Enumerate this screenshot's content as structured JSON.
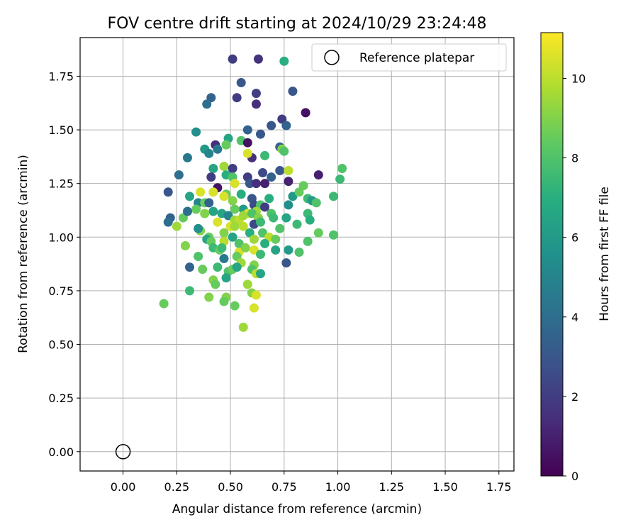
{
  "chart_data": {
    "type": "scatter",
    "title": "FOV centre drift starting at 2024/10/29 23:24:48",
    "xlabel": "Angular distance from reference (arcmin)",
    "ylabel": "Rotation from reference (arcmin)",
    "xlim": [
      -0.2,
      1.82
    ],
    "ylim": [
      -0.09,
      1.93
    ],
    "x_ticks": [
      0.0,
      0.25,
      0.5,
      0.75,
      1.0,
      1.25,
      1.5,
      1.75
    ],
    "x_tick_labels": [
      "0.00",
      "0.25",
      "0.50",
      "0.75",
      "1.00",
      "1.25",
      "1.50",
      "1.75"
    ],
    "y_ticks": [
      0.0,
      0.25,
      0.5,
      0.75,
      1.0,
      1.25,
      1.5,
      1.75
    ],
    "y_tick_labels": [
      "0.00",
      "0.25",
      "0.50",
      "0.75",
      "1.00",
      "1.25",
      "1.50",
      "1.75"
    ],
    "grid": true,
    "legend": {
      "placement": "upper-right",
      "entries": [
        "Reference platepar"
      ]
    },
    "reference_point": {
      "x": 0.0,
      "y": 0.0
    },
    "colorbar": {
      "label": "Hours from first FF file",
      "colormap": "viridis",
      "range": [
        0,
        11.15
      ],
      "ticks": [
        0,
        2,
        4,
        6,
        8,
        10
      ],
      "tick_labels": [
        "0",
        "2",
        "4",
        "6",
        "8",
        "10"
      ]
    },
    "points": [
      [
        0.51,
        1.83,
        2.0
      ],
      [
        0.63,
        1.83,
        1.6
      ],
      [
        0.75,
        1.82,
        7.0
      ],
      [
        0.55,
        1.72,
        3.0
      ],
      [
        0.41,
        1.65,
        3.5
      ],
      [
        0.53,
        1.65,
        2.0
      ],
      [
        0.79,
        1.68,
        3.0
      ],
      [
        0.62,
        1.67,
        2.0
      ],
      [
        0.39,
        1.62,
        4.0
      ],
      [
        0.62,
        1.62,
        1.5
      ],
      [
        0.85,
        1.58,
        0.5
      ],
      [
        0.74,
        1.55,
        2.0
      ],
      [
        0.76,
        1.52,
        3.5
      ],
      [
        0.69,
        1.52,
        3.0
      ],
      [
        0.34,
        1.49,
        5.5
      ],
      [
        0.58,
        1.5,
        3.5
      ],
      [
        0.64,
        1.48,
        3.0
      ],
      [
        0.49,
        1.46,
        6.5
      ],
      [
        0.48,
        1.43,
        8.5
      ],
      [
        0.55,
        1.45,
        8.0
      ],
      [
        0.58,
        1.44,
        0.5
      ],
      [
        0.43,
        1.43,
        1.5
      ],
      [
        0.38,
        1.41,
        6.0
      ],
      [
        0.4,
        1.39,
        5.0
      ],
      [
        0.44,
        1.41,
        4.5
      ],
      [
        0.73,
        1.42,
        3.5
      ],
      [
        0.74,
        1.41,
        9.0
      ],
      [
        0.75,
        1.4,
        8.0
      ],
      [
        0.3,
        1.37,
        4.5
      ],
      [
        0.6,
        1.37,
        1.5
      ],
      [
        0.66,
        1.38,
        7.5
      ],
      [
        0.58,
        1.39,
        10.5
      ],
      [
        0.47,
        1.33,
        9.5
      ],
      [
        0.42,
        1.32,
        6.5
      ],
      [
        0.51,
        1.32,
        2.0
      ],
      [
        0.73,
        1.31,
        3.0
      ],
      [
        0.77,
        1.31,
        10.0
      ],
      [
        1.02,
        1.32,
        8.0
      ],
      [
        0.26,
        1.29,
        4.0
      ],
      [
        0.41,
        1.28,
        2.0
      ],
      [
        0.48,
        1.29,
        7.0
      ],
      [
        0.51,
        1.28,
        8.0
      ],
      [
        0.58,
        1.28,
        2.0
      ],
      [
        0.65,
        1.3,
        2.5
      ],
      [
        0.69,
        1.28,
        3.5
      ],
      [
        0.77,
        1.26,
        1.0
      ],
      [
        0.91,
        1.29,
        1.0
      ],
      [
        1.01,
        1.27,
        7.5
      ],
      [
        0.21,
        1.21,
        3.0
      ],
      [
        0.44,
        1.23,
        0.5
      ],
      [
        0.52,
        1.25,
        10.5
      ],
      [
        0.59,
        1.25,
        3.0
      ],
      [
        0.62,
        1.25,
        1.5
      ],
      [
        0.66,
        1.25,
        1.0
      ],
      [
        0.84,
        1.24,
        8.5
      ],
      [
        0.36,
        1.21,
        10.5
      ],
      [
        0.48,
        1.2,
        8.5
      ],
      [
        0.55,
        1.2,
        7.0
      ],
      [
        0.79,
        1.19,
        6.0
      ],
      [
        0.82,
        1.21,
        8.5
      ],
      [
        0.98,
        1.19,
        7.5
      ],
      [
        0.31,
        1.19,
        6.5
      ],
      [
        0.42,
        1.21,
        10.5
      ],
      [
        0.47,
        1.19,
        10.5
      ],
      [
        0.6,
        1.18,
        3.0
      ],
      [
        0.68,
        1.18,
        7.0
      ],
      [
        0.86,
        1.18,
        7.5
      ],
      [
        0.35,
        1.16,
        5.0
      ],
      [
        0.38,
        1.16,
        8.5
      ],
      [
        0.4,
        1.16,
        3.5
      ],
      [
        0.51,
        1.17,
        9.0
      ],
      [
        0.56,
        1.13,
        6.0
      ],
      [
        0.61,
        1.15,
        2.5
      ],
      [
        0.64,
        1.15,
        8.0
      ],
      [
        0.77,
        1.15,
        5.5
      ],
      [
        0.88,
        1.17,
        6.0
      ],
      [
        0.9,
        1.16,
        8.0
      ],
      [
        0.34,
        1.13,
        8.5
      ],
      [
        0.42,
        1.12,
        6.5
      ],
      [
        0.46,
        1.11,
        6.5
      ],
      [
        0.52,
        1.13,
        8.5
      ],
      [
        0.58,
        1.11,
        10.5
      ],
      [
        0.62,
        1.12,
        9.5
      ],
      [
        0.66,
        1.14,
        2.0
      ],
      [
        0.69,
        1.11,
        8.0
      ],
      [
        0.22,
        1.09,
        3.5
      ],
      [
        0.28,
        1.09,
        8.5
      ],
      [
        0.3,
        1.12,
        4.0
      ],
      [
        0.38,
        1.11,
        9.0
      ],
      [
        0.44,
        1.07,
        10.5
      ],
      [
        0.49,
        1.1,
        5.0
      ],
      [
        0.52,
        1.08,
        9.5
      ],
      [
        0.54,
        1.08,
        10.0
      ],
      [
        0.56,
        1.1,
        9.5
      ],
      [
        0.6,
        1.11,
        8.0
      ],
      [
        0.63,
        1.09,
        9.0
      ],
      [
        0.7,
        1.09,
        7.5
      ],
      [
        0.76,
        1.09,
        6.5
      ],
      [
        0.81,
        1.06,
        7.5
      ],
      [
        0.86,
        1.11,
        7.5
      ],
      [
        0.87,
        1.08,
        7.0
      ],
      [
        0.21,
        1.07,
        4.0
      ],
      [
        0.25,
        1.05,
        9.5
      ],
      [
        0.36,
        1.03,
        9.0
      ],
      [
        0.5,
        1.05,
        10.5
      ],
      [
        0.52,
        1.05,
        9.5
      ],
      [
        0.56,
        1.05,
        10.0
      ],
      [
        0.61,
        1.06,
        2.5
      ],
      [
        0.64,
        1.07,
        7.5
      ],
      [
        0.73,
        1.04,
        8.0
      ],
      [
        0.35,
        1.04,
        5.5
      ],
      [
        0.4,
        1.0,
        8.5
      ],
      [
        0.47,
        1.02,
        9.0
      ],
      [
        0.51,
        1.0,
        6.5
      ],
      [
        0.59,
        1.02,
        7.0
      ],
      [
        0.65,
        1.02,
        8.0
      ],
      [
        0.68,
        1.0,
        10.0
      ],
      [
        0.71,
        0.99,
        8.5
      ],
      [
        0.91,
        1.02,
        8.5
      ],
      [
        0.98,
        1.01,
        8.0
      ],
      [
        0.39,
        0.99,
        6.5
      ],
      [
        0.41,
        0.98,
        8.5
      ],
      [
        0.47,
        0.98,
        10.0
      ],
      [
        0.54,
        0.97,
        8.0
      ],
      [
        0.61,
        0.99,
        9.5
      ],
      [
        0.66,
        0.97,
        7.0
      ],
      [
        0.86,
        0.98,
        8.0
      ],
      [
        0.29,
        0.96,
        9.0
      ],
      [
        0.42,
        0.95,
        7.5
      ],
      [
        0.45,
        0.94,
        8.5
      ],
      [
        0.46,
        0.95,
        7.5
      ],
      [
        0.54,
        0.93,
        10.5
      ],
      [
        0.57,
        0.95,
        9.0
      ],
      [
        0.61,
        0.94,
        10.5
      ],
      [
        0.64,
        0.92,
        7.5
      ],
      [
        0.71,
        0.94,
        6.5
      ],
      [
        0.77,
        0.94,
        6.0
      ],
      [
        0.82,
        0.93,
        8.0
      ],
      [
        0.35,
        0.91,
        8.0
      ],
      [
        0.47,
        0.9,
        4.5
      ],
      [
        0.53,
        0.91,
        8.5
      ],
      [
        0.55,
        0.88,
        9.5
      ],
      [
        0.61,
        0.87,
        9.0
      ],
      [
        0.76,
        0.88,
        3.0
      ],
      [
        0.31,
        0.86,
        3.5
      ],
      [
        0.37,
        0.85,
        8.5
      ],
      [
        0.44,
        0.86,
        7.5
      ],
      [
        0.49,
        0.84,
        8.0
      ],
      [
        0.51,
        0.85,
        8.5
      ],
      [
        0.53,
        0.86,
        6.5
      ],
      [
        0.6,
        0.85,
        8.0
      ],
      [
        0.62,
        0.83,
        10.0
      ],
      [
        0.64,
        0.83,
        6.5
      ],
      [
        0.42,
        0.8,
        9.0
      ],
      [
        0.43,
        0.78,
        8.5
      ],
      [
        0.48,
        0.81,
        6.5
      ],
      [
        0.58,
        0.78,
        9.5
      ],
      [
        0.31,
        0.75,
        7.5
      ],
      [
        0.4,
        0.72,
        9.0
      ],
      [
        0.48,
        0.72,
        9.0
      ],
      [
        0.6,
        0.74,
        9.0
      ],
      [
        0.62,
        0.73,
        10.5
      ],
      [
        0.47,
        0.7,
        8.5
      ],
      [
        0.52,
        0.68,
        8.5
      ],
      [
        0.61,
        0.67,
        10.5
      ],
      [
        0.19,
        0.69,
        8.5
      ],
      [
        0.56,
        0.58,
        9.5
      ]
    ]
  }
}
